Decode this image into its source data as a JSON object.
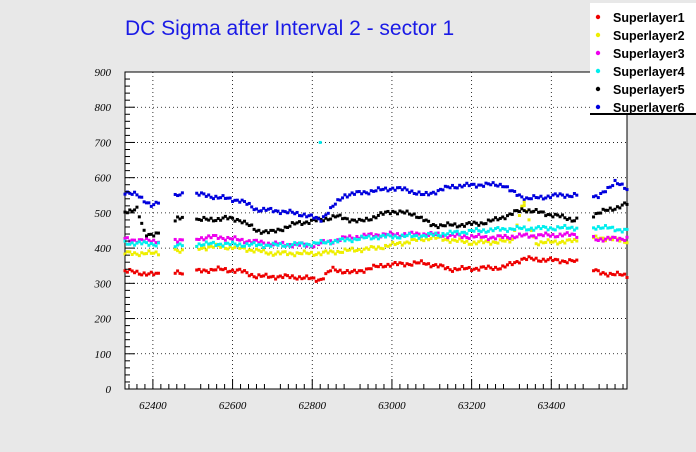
{
  "chart_data": {
    "type": "scatter",
    "title": "DC Sigma after Interval 2 - sector 1",
    "xlabel": "",
    "ylabel": "",
    "xlim": [
      62330,
      63590
    ],
    "ylim": [
      0,
      900
    ],
    "xticks": [
      62400,
      62600,
      62800,
      63000,
      63200,
      63400
    ],
    "yticks": [
      0,
      100,
      200,
      300,
      400,
      500,
      600,
      700,
      800,
      900
    ],
    "grid": true,
    "legend_position": "top-right",
    "gaps": [
      [
        62420,
        62455
      ],
      [
        62478,
        62505
      ],
      [
        63465,
        63505
      ]
    ],
    "x_start": 62330,
    "x_end": 63590,
    "x_step": 6,
    "series": [
      {
        "name": "Superlayer1",
        "color": "#ee0000",
        "profile": [
          [
            62330,
            335
          ],
          [
            62400,
            325
          ],
          [
            62480,
            330
          ],
          [
            62560,
            340
          ],
          [
            62620,
            335
          ],
          [
            62660,
            320
          ],
          [
            62760,
            318
          ],
          [
            62820,
            310
          ],
          [
            62850,
            340
          ],
          [
            62900,
            330
          ],
          [
            62980,
            352
          ],
          [
            63080,
            358
          ],
          [
            63150,
            340
          ],
          [
            63280,
            345
          ],
          [
            63330,
            370
          ],
          [
            63460,
            362
          ],
          [
            63520,
            330
          ],
          [
            63590,
            322
          ]
        ]
      },
      {
        "name": "Superlayer2",
        "color": "#eeee00",
        "profile": [
          [
            62330,
            385
          ],
          [
            62400,
            385
          ],
          [
            62480,
            395
          ],
          [
            62560,
            405
          ],
          [
            62620,
            400
          ],
          [
            62700,
            385
          ],
          [
            62760,
            385
          ],
          [
            62820,
            385
          ],
          [
            62880,
            392
          ],
          [
            62960,
            400
          ],
          [
            63040,
            418
          ],
          [
            63100,
            430
          ],
          [
            63200,
            415
          ],
          [
            63300,
            420
          ],
          [
            63330,
            530
          ],
          [
            63360,
            415
          ],
          [
            63460,
            420
          ],
          [
            63520,
            430
          ],
          [
            63590,
            420
          ]
        ]
      },
      {
        "name": "Superlayer3",
        "color": "#ee00ee",
        "profile": [
          [
            62330,
            425
          ],
          [
            62400,
            420
          ],
          [
            62480,
            425
          ],
          [
            62560,
            432
          ],
          [
            62640,
            420
          ],
          [
            62700,
            412
          ],
          [
            62800,
            408
          ],
          [
            62880,
            428
          ],
          [
            62960,
            438
          ],
          [
            63080,
            440
          ],
          [
            63150,
            435
          ],
          [
            63260,
            430
          ],
          [
            63330,
            435
          ],
          [
            63460,
            438
          ],
          [
            63520,
            425
          ],
          [
            63590,
            428
          ]
        ]
      },
      {
        "name": "Superlayer4",
        "color": "#00eeee",
        "profile": [
          [
            62330,
            415
          ],
          [
            62400,
            412
          ],
          [
            62480,
            410
          ],
          [
            62560,
            412
          ],
          [
            62620,
            410
          ],
          [
            62700,
            408
          ],
          [
            62800,
            412
          ],
          [
            62860,
            420
          ],
          [
            62960,
            432
          ],
          [
            63080,
            435
          ],
          [
            63200,
            448
          ],
          [
            63300,
            455
          ],
          [
            63460,
            458
          ],
          [
            63520,
            460
          ],
          [
            63590,
            450
          ]
        ]
      },
      {
        "name": "Superlayer5",
        "color": "#000000",
        "profile": [
          [
            62330,
            505
          ],
          [
            62360,
            510
          ],
          [
            62380,
            440
          ],
          [
            62420,
            440
          ],
          [
            62460,
            485
          ],
          [
            62540,
            480
          ],
          [
            62580,
            485
          ],
          [
            62620,
            480
          ],
          [
            62660,
            450
          ],
          [
            62700,
            445
          ],
          [
            62760,
            470
          ],
          [
            62820,
            480
          ],
          [
            62860,
            490
          ],
          [
            62920,
            475
          ],
          [
            62960,
            490
          ],
          [
            63000,
            505
          ],
          [
            63060,
            495
          ],
          [
            63100,
            465
          ],
          [
            63160,
            465
          ],
          [
            63220,
            470
          ],
          [
            63260,
            480
          ],
          [
            63330,
            510
          ],
          [
            63400,
            495
          ],
          [
            63460,
            480
          ],
          [
            63520,
            500
          ],
          [
            63590,
            525
          ]
        ]
      },
      {
        "name": "Superlayer6",
        "color": "#0000dd",
        "profile": [
          [
            62330,
            560
          ],
          [
            62360,
            550
          ],
          [
            62400,
            520
          ],
          [
            62440,
            545
          ],
          [
            62500,
            555
          ],
          [
            62560,
            545
          ],
          [
            62620,
            535
          ],
          [
            62660,
            510
          ],
          [
            62720,
            505
          ],
          [
            62780,
            495
          ],
          [
            62820,
            480
          ],
          [
            62880,
            550
          ],
          [
            62940,
            560
          ],
          [
            63000,
            570
          ],
          [
            63040,
            565
          ],
          [
            63080,
            550
          ],
          [
            63150,
            575
          ],
          [
            63220,
            580
          ],
          [
            63280,
            580
          ],
          [
            63300,
            560
          ],
          [
            63340,
            540
          ],
          [
            63420,
            550
          ],
          [
            63460,
            550
          ],
          [
            63520,
            545
          ],
          [
            63560,
            590
          ],
          [
            63590,
            565
          ]
        ]
      }
    ],
    "outliers": [
      {
        "series": "Superlayer4",
        "x": 62820,
        "y": 700
      },
      {
        "series": "Superlayer2",
        "x": 63332,
        "y": 530
      }
    ]
  }
}
